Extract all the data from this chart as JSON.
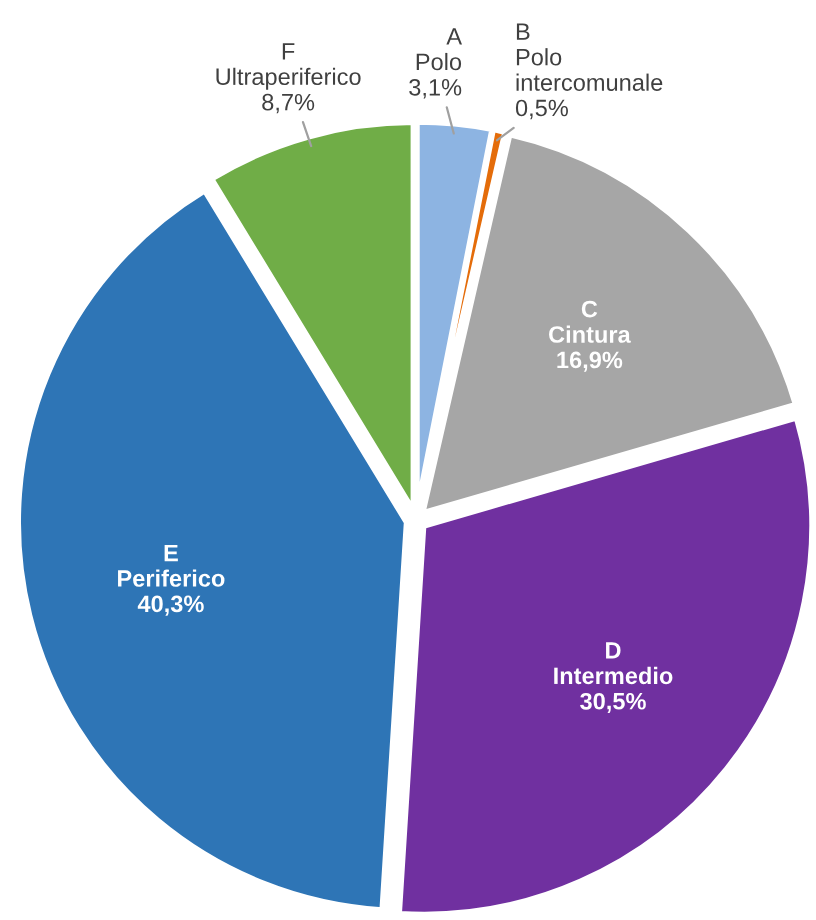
{
  "chart_data": {
    "type": "pie",
    "categories": [
      "A\nPolo",
      "B\nPolo\nintercomunale",
      "C\nCintura",
      "D\nIntermedio",
      "E\nPeriferico",
      "F\nUltraperiferico"
    ],
    "values": [
      3.1,
      0.5,
      16.9,
      30.5,
      40.3,
      8.7
    ],
    "value_labels": [
      "3,1%",
      "0,5%",
      "16,9%",
      "30,5%",
      "40,3%",
      "8,7%"
    ],
    "colors": [
      "#8db4e2",
      "#e46c0a",
      "#a6a6a6",
      "#7030a0",
      "#2e75b6",
      "#70ad47"
    ],
    "legend": false
  }
}
